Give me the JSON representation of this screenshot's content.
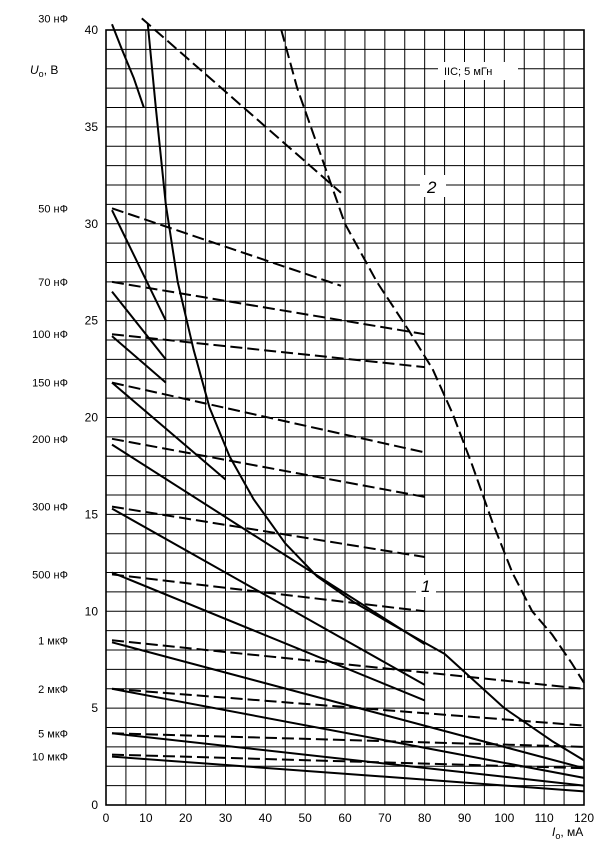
{
  "chart_data": {
    "type": "line",
    "xlabel": "Iₒ, мА",
    "ylabel": "Uₒ, В",
    "xlim": [
      0,
      120
    ],
    "ylim": [
      0,
      40
    ],
    "x_ticks": [
      "0",
      "10",
      "20",
      "30",
      "40",
      "50",
      "60",
      "70",
      "80",
      "90",
      "100",
      "110",
      "120"
    ],
    "y_ticks": [
      "0",
      "5",
      "10",
      "15",
      "20",
      "25",
      "30",
      "35",
      "40"
    ],
    "grid": true,
    "annotation": "IIC; 5 мГн",
    "curve_labels": [
      "1",
      "2"
    ],
    "capacitance_labels": [
      {
        "label": "30 нФ",
        "u": 40.6
      },
      {
        "label": "50 нФ",
        "u": 30.8
      },
      {
        "label": "70 нФ",
        "u": 27
      },
      {
        "label": "100 нФ",
        "u": 24.3
      },
      {
        "label": "150 нФ",
        "u": 21.8
      },
      {
        "label": "200 нФ",
        "u": 18.9
      },
      {
        "label": "300 нФ",
        "u": 15.4
      },
      {
        "label": "500 нФ",
        "u": 11.9
      },
      {
        "label": "1 мкФ",
        "u": 8.5
      },
      {
        "label": "2 мкФ",
        "u": 6
      },
      {
        "label": "5 мкФ",
        "u": 3.7
      },
      {
        "label": "10 мкФ",
        "u": 2.5
      }
    ],
    "series": [
      {
        "style": "solid",
        "points": [
          [
            1.5,
            40.3
          ],
          [
            4,
            39
          ],
          [
            7,
            37.5
          ],
          [
            9.5,
            36
          ]
        ]
      },
      {
        "style": "solid",
        "points": [
          [
            10.5,
            40.3
          ],
          [
            12.5,
            36
          ],
          [
            15,
            31
          ],
          [
            18,
            27
          ],
          [
            22,
            23.5
          ],
          [
            26,
            20.5
          ],
          [
            31,
            18
          ],
          [
            37,
            15.8
          ],
          [
            45,
            13.5
          ],
          [
            53,
            11.8
          ],
          [
            62,
            10.5
          ],
          [
            72,
            9.3
          ],
          [
            85,
            7.8
          ],
          [
            100,
            5
          ],
          [
            112,
            3.3
          ],
          [
            120,
            2.3
          ]
        ]
      },
      {
        "style": "solid",
        "points": [
          [
            1.5,
            30.7
          ],
          [
            15,
            25
          ]
        ]
      },
      {
        "style": "solid",
        "points": [
          [
            1.5,
            26.5
          ],
          [
            15,
            23
          ]
        ]
      },
      {
        "style": "solid",
        "points": [
          [
            1.5,
            24.2
          ],
          [
            15,
            21.8
          ]
        ]
      },
      {
        "style": "solid",
        "points": [
          [
            1.5,
            21.8
          ],
          [
            30,
            16.8
          ]
        ]
      },
      {
        "style": "solid",
        "points": [
          [
            1.5,
            18.6
          ],
          [
            80,
            8.3
          ]
        ]
      },
      {
        "style": "solid",
        "points": [
          [
            1.5,
            15.3
          ],
          [
            80,
            6.2
          ]
        ]
      },
      {
        "style": "solid",
        "points": [
          [
            1.5,
            12
          ],
          [
            80,
            5.4
          ]
        ]
      },
      {
        "style": "solid",
        "points": [
          [
            1.5,
            8.4
          ],
          [
            120,
            1.9
          ]
        ]
      },
      {
        "style": "solid",
        "points": [
          [
            1.5,
            6
          ],
          [
            120,
            1.4
          ]
        ]
      },
      {
        "style": "solid",
        "points": [
          [
            1.5,
            3.7
          ],
          [
            120,
            1
          ]
        ]
      },
      {
        "style": "solid",
        "points": [
          [
            1.5,
            2.5
          ],
          [
            120,
            0.7
          ]
        ]
      },
      {
        "style": "dashed",
        "points": [
          [
            9,
            40.6
          ],
          [
            59,
            31.6
          ]
        ]
      },
      {
        "style": "dashed",
        "points": [
          [
            44,
            40
          ],
          [
            48,
            37
          ],
          [
            54,
            33.5
          ],
          [
            60,
            30
          ],
          [
            68,
            27
          ],
          [
            76,
            24.5
          ],
          [
            82,
            22.5
          ],
          [
            87,
            20.2
          ],
          [
            92,
            17.5
          ],
          [
            97,
            14.6
          ],
          [
            102,
            12
          ],
          [
            107,
            10
          ],
          [
            112,
            8.8
          ],
          [
            117,
            7.3
          ],
          [
            120,
            6.3
          ]
        ]
      },
      {
        "style": "dashed",
        "points": [
          [
            1.5,
            30.8
          ],
          [
            59,
            26.8
          ]
        ]
      },
      {
        "style": "dashed",
        "points": [
          [
            1.5,
            27
          ],
          [
            80,
            24.3
          ]
        ]
      },
      {
        "style": "dashed",
        "points": [
          [
            1.5,
            24.3
          ],
          [
            80,
            22.6
          ]
        ]
      },
      {
        "style": "dashed",
        "points": [
          [
            1.5,
            21.8
          ],
          [
            80,
            18.2
          ]
        ]
      },
      {
        "style": "dashed",
        "points": [
          [
            1.5,
            18.9
          ],
          [
            80,
            15.9
          ]
        ]
      },
      {
        "style": "dashed",
        "points": [
          [
            1.5,
            15.4
          ],
          [
            80,
            12.8
          ]
        ]
      },
      {
        "style": "dashed",
        "points": [
          [
            1.5,
            11.9
          ],
          [
            80,
            10
          ]
        ]
      },
      {
        "style": "dashed",
        "points": [
          [
            1.5,
            8.5
          ],
          [
            120,
            6
          ]
        ]
      },
      {
        "style": "dashed",
        "points": [
          [
            1.5,
            6
          ],
          [
            120,
            4.1
          ]
        ]
      },
      {
        "style": "dashed",
        "points": [
          [
            1.5,
            3.7
          ],
          [
            120,
            3
          ]
        ]
      },
      {
        "style": "dashed",
        "points": [
          [
            1.5,
            2.6
          ],
          [
            120,
            1.9
          ]
        ]
      }
    ]
  }
}
